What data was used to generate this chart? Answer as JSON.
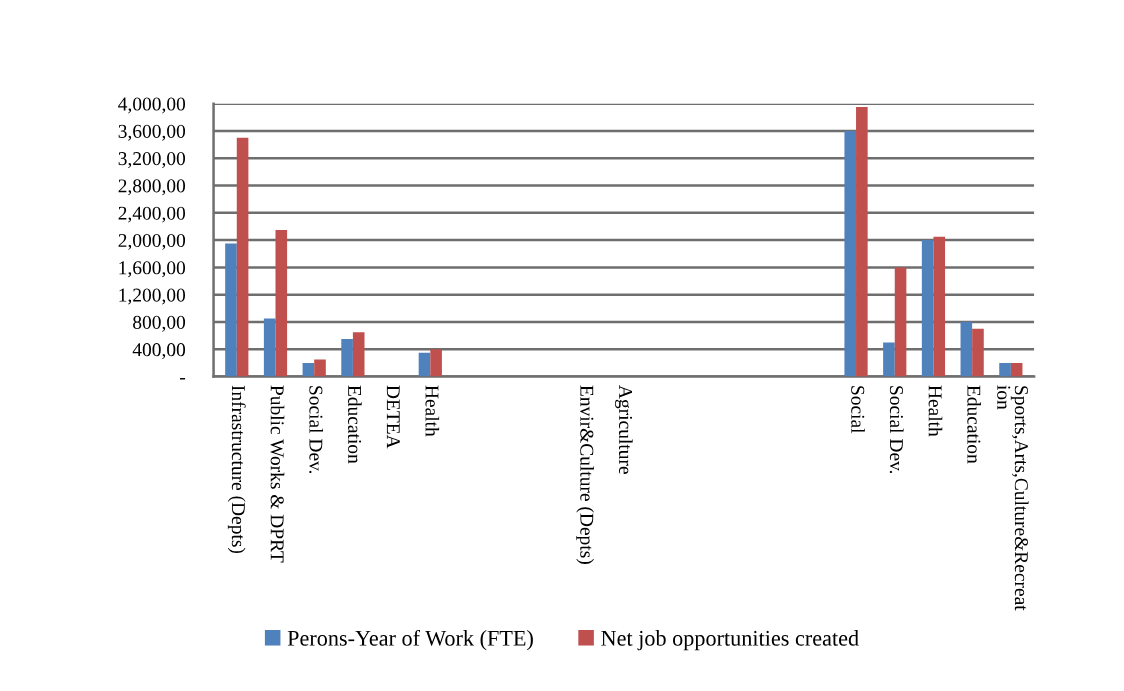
{
  "chart_data": {
    "type": "bar",
    "categories": [
      "Infrastructure (Depts)",
      "Public Works & DPRT",
      "Social Dev.",
      "Education",
      "DETEA",
      "Health",
      null,
      null,
      null,
      "Envir&Culture (Depts)",
      "Agriculture",
      null,
      null,
      null,
      null,
      null,
      "Social",
      "Social Dev.",
      "Health",
      "Education",
      "Sports,Arts,Culture&Recreat\nion"
    ],
    "series": [
      {
        "name": "Perons-Year of Work (FTE)",
        "color": "#4f81bd",
        "values": [
          1950,
          850,
          200,
          550,
          0,
          350,
          0,
          0,
          0,
          0,
          0,
          0,
          0,
          0,
          0,
          0,
          3600,
          500,
          2000,
          800,
          200
        ]
      },
      {
        "name": "Net job opportunities created",
        "color": "#c0504d",
        "values": [
          3500,
          2150,
          250,
          650,
          0,
          400,
          0,
          0,
          0,
          0,
          0,
          0,
          0,
          0,
          0,
          0,
          3950,
          1600,
          2050,
          700,
          200
        ]
      }
    ],
    "ylim": [
      0,
      4000
    ],
    "yticks": [
      {
        "value": 0,
        "label": "-"
      },
      {
        "value": 400,
        "label": "400,00"
      },
      {
        "value": 800,
        "label": "800,00"
      },
      {
        "value": 1200,
        "label": "1,200,00"
      },
      {
        "value": 1600,
        "label": "1,600,00"
      },
      {
        "value": 2000,
        "label": "2,000,00"
      },
      {
        "value": 2400,
        "label": "2,400,00"
      },
      {
        "value": 2800,
        "label": "2,800,00"
      },
      {
        "value": 3200,
        "label": "3,200,00"
      },
      {
        "value": 3600,
        "label": "3,600,00"
      },
      {
        "value": 4000,
        "label": "4,000,00"
      }
    ],
    "grid": "y",
    "legend": "bottom"
  }
}
